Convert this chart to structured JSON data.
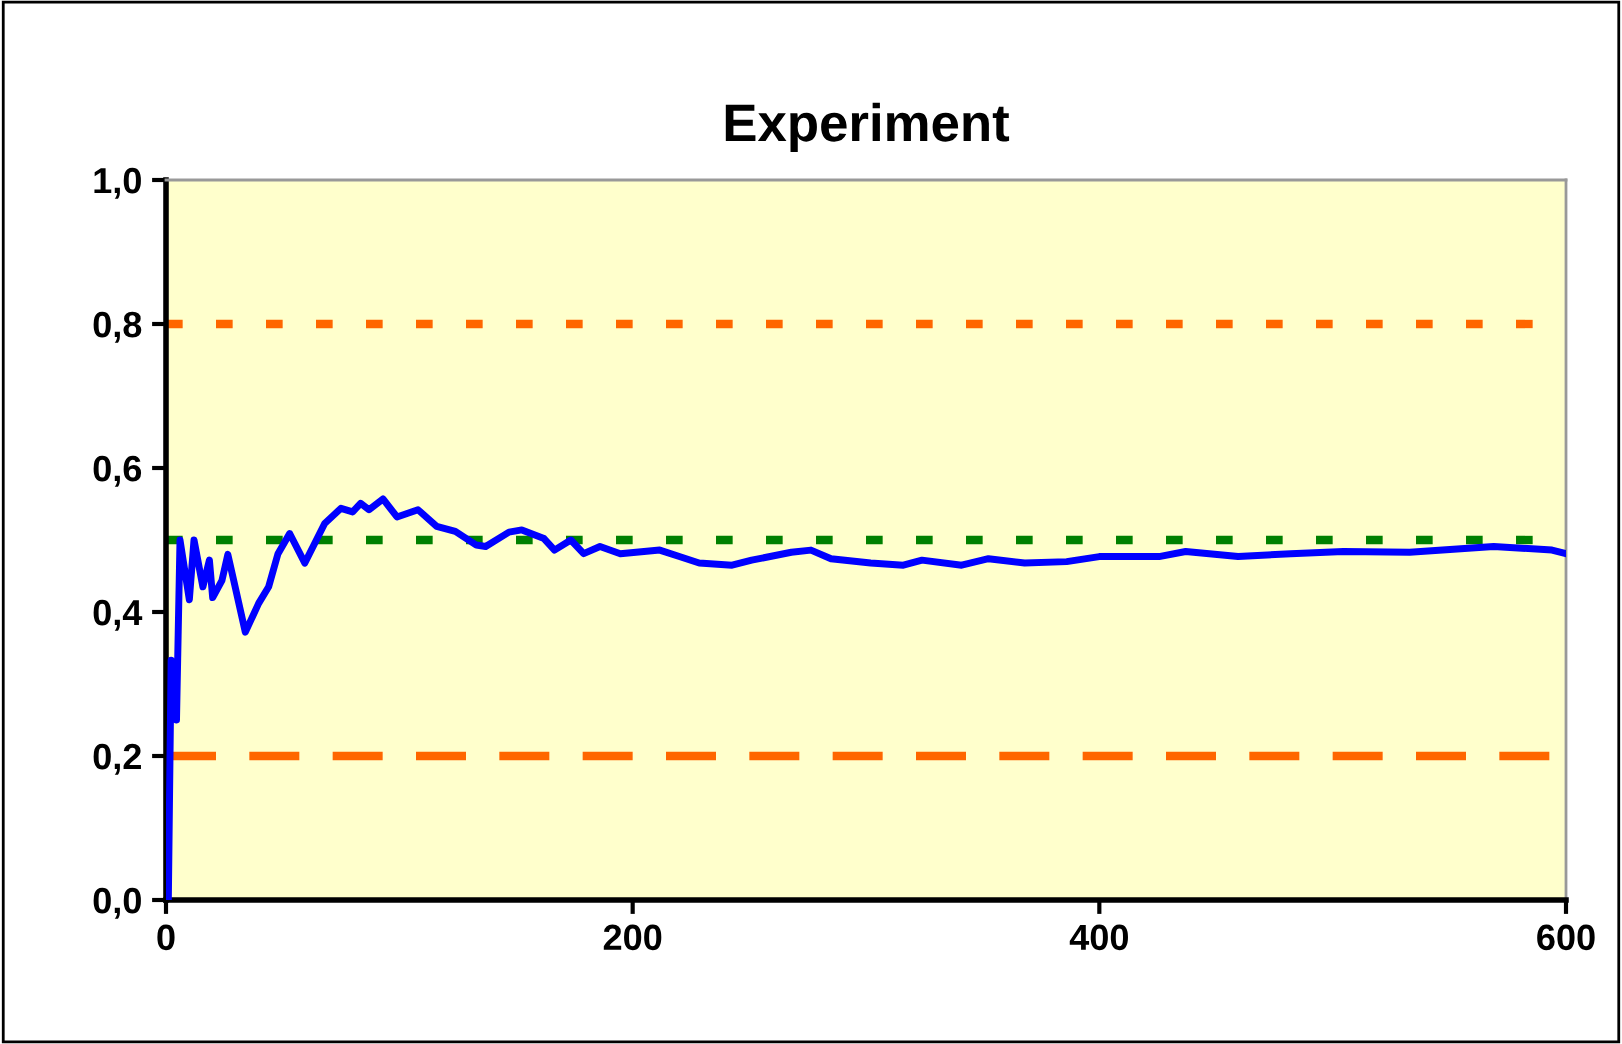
{
  "chart_data": {
    "type": "line",
    "title": "Experiment",
    "xlim": [
      0,
      600
    ],
    "xticks": [
      0,
      200,
      400,
      600
    ],
    "ylim": [
      0,
      1.0
    ],
    "yticks": [
      {
        "value": 0,
        "label": "0,0"
      },
      {
        "value": 0.2,
        "label": "0,2"
      },
      {
        "value": 0.4,
        "label": "0,4"
      },
      {
        "value": 0.6,
        "label": "0,6"
      },
      {
        "value": 0.8,
        "label": "0,8"
      },
      {
        "value": 1.0,
        "label": "1,0"
      }
    ],
    "grid": false,
    "legend": false,
    "marker": "none",
    "line_style": "solid",
    "series": [
      {
        "color": "#0000ff",
        "x": [
          1,
          2.2,
          4.5,
          6,
          10,
          12,
          15.8,
          18.6,
          20,
          24,
          26.5,
          29,
          34,
          39.7,
          44,
          48,
          53,
          59.5,
          68,
          75,
          80,
          83.4,
          87,
          93,
          99,
          108,
          116,
          124,
          133,
          137,
          147,
          152.5,
          162,
          166.5,
          173.5,
          179,
          186,
          194.7,
          211.6,
          220,
          228.5,
          242.6,
          251,
          268,
          276.4,
          285,
          302,
          316,
          324,
          341,
          352.5,
          368,
          386,
          400,
          425.6,
          437,
          459.5,
          482,
          504.6,
          533,
          569,
          594,
          600
        ],
        "values": [
          0,
          0.333,
          0.25,
          0.5,
          0.417,
          0.5,
          0.435,
          0.472,
          0.42,
          0.444,
          0.48,
          0.444,
          0.372,
          0.412,
          0.435,
          0.481,
          0.509,
          0.468,
          0.523,
          0.544,
          0.539,
          0.551,
          0.542,
          0.557,
          0.532,
          0.542,
          0.519,
          0.512,
          0.493,
          0.491,
          0.511,
          0.514,
          0.502,
          0.486,
          0.5,
          0.481,
          0.491,
          0.481,
          0.486,
          0.477,
          0.468,
          0.465,
          0.472,
          0.483,
          0.486,
          0.474,
          0.468,
          0.465,
          0.472,
          0.465,
          0.474,
          0.468,
          0.47,
          0.477,
          0.477,
          0.484,
          0.477,
          0.481,
          0.484,
          0.483,
          0.491,
          0.486,
          0.481
        ]
      }
    ],
    "ref_lines": [
      {
        "axis": "y",
        "value": 0.8,
        "color": "#ff6600",
        "line_style": "dotted"
      },
      {
        "axis": "y",
        "value": 0.5,
        "color": "#008000",
        "line_style": "dotted"
      },
      {
        "axis": "y",
        "value": 0.2,
        "color": "#ff6600",
        "line_style": "dashed"
      }
    ]
  }
}
